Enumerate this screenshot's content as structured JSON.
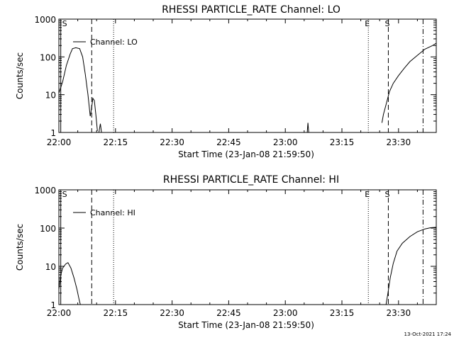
{
  "footer": {
    "timestamp": "13-Oct-2021 17:24"
  },
  "chart_data": [
    {
      "type": "line",
      "title": "RHESSI PARTICLE_RATE Channel: LO",
      "xlabel": "Start Time (23-Jan-08 21:59:50)",
      "ylabel": "Counts/sec",
      "yscale": "log",
      "ylim": [
        1,
        1000
      ],
      "xlim_min": [
        0,
        100
      ],
      "x_ticks": [
        {
          "min": 0,
          "label": "22:00"
        },
        {
          "min": 15,
          "label": "22:15"
        },
        {
          "min": 30,
          "label": "22:30"
        },
        {
          "min": 45,
          "label": "22:45"
        },
        {
          "min": 60,
          "label": "23:00"
        },
        {
          "min": 75,
          "label": "23:15"
        },
        {
          "min": 90,
          "label": "23:30"
        }
      ],
      "y_ticks": [
        {
          "value": 1,
          "label": "1"
        },
        {
          "value": 10,
          "label": "10"
        },
        {
          "value": 100,
          "label": "100"
        },
        {
          "value": 1000,
          "label": "1000"
        }
      ],
      "legend": {
        "entry": "Channel: LO",
        "position": "top-left"
      },
      "series": [
        {
          "name": "Channel: LO",
          "segments": [
            [
              [
                0,
                11
              ],
              [
                1,
                22
              ],
              [
                2,
                60
              ],
              [
                3,
                120
              ],
              [
                3.6,
                165
              ],
              [
                4.5,
                175
              ],
              [
                5.5,
                165
              ],
              [
                6.3,
                100
              ],
              [
                7,
                35
              ],
              [
                7.7,
                10
              ],
              [
                8.3,
                2.7
              ],
              [
                8.6,
                4
              ],
              [
                9,
                8
              ],
              [
                9.4,
                7
              ],
              [
                9.8,
                3
              ],
              [
                10.2,
                1.1
              ]
            ],
            [
              [
                10.6,
                1
              ],
              [
                11,
                1.7
              ],
              [
                11.3,
                1
              ]
            ],
            [
              [
                65.8,
                1
              ],
              [
                66,
                1.8
              ],
              [
                66.2,
                1
              ]
            ],
            [
              [
                85.6,
                1.8
              ],
              [
                86,
                3
              ],
              [
                86.8,
                6
              ],
              [
                87.6,
                12
              ],
              [
                88.6,
                20
              ],
              [
                90,
                32
              ],
              [
                91.5,
                50
              ],
              [
                93,
                75
              ],
              [
                95,
                110
              ],
              [
                97,
                160
              ],
              [
                99,
                200
              ],
              [
                100,
                230
              ]
            ]
          ]
        }
      ],
      "annotations": [
        {
          "label": "S",
          "min": 0.5,
          "style": "solid"
        },
        {
          "label": "",
          "min": 8.7,
          "style": "dashed"
        },
        {
          "label": "",
          "min": 14.5,
          "style": "dotted"
        },
        {
          "label": "E",
          "min": 82,
          "style": "dotted"
        },
        {
          "label": "S",
          "min": 87.3,
          "style": "dashed"
        },
        {
          "label": "",
          "min": 96.5,
          "style": "dashdot"
        }
      ]
    },
    {
      "type": "line",
      "title": "RHESSI PARTICLE_RATE Channel: HI",
      "xlabel": "Start Time (23-Jan-08 21:59:50)",
      "ylabel": "Counts/sec",
      "yscale": "log",
      "ylim": [
        1,
        1000
      ],
      "xlim_min": [
        0,
        100
      ],
      "x_ticks": [
        {
          "min": 0,
          "label": "22:00"
        },
        {
          "min": 15,
          "label": "22:15"
        },
        {
          "min": 30,
          "label": "22:30"
        },
        {
          "min": 45,
          "label": "22:45"
        },
        {
          "min": 60,
          "label": "23:00"
        },
        {
          "min": 75,
          "label": "23:15"
        },
        {
          "min": 90,
          "label": "23:30"
        }
      ],
      "y_ticks": [
        {
          "value": 1,
          "label": "1"
        },
        {
          "value": 10,
          "label": "10"
        },
        {
          "value": 100,
          "label": "100"
        },
        {
          "value": 1000,
          "label": "1000"
        }
      ],
      "legend": {
        "entry": "Channel: HI",
        "position": "top-left"
      },
      "series": [
        {
          "name": "Channel: HI",
          "segments": [
            [
              [
                0,
                2.5
              ],
              [
                0.5,
                6
              ],
              [
                1,
                9
              ],
              [
                1.8,
                11.5
              ],
              [
                2.4,
                12.5
              ],
              [
                3.2,
                9
              ],
              [
                4,
                5
              ],
              [
                4.8,
                2.5
              ],
              [
                5.4,
                1.3
              ],
              [
                5.7,
                1
              ]
            ],
            [
              [
                86.7,
                1
              ],
              [
                87.2,
                2
              ],
              [
                87.8,
                5
              ],
              [
                88.6,
                12
              ],
              [
                89.6,
                25
              ],
              [
                91,
                40
              ],
              [
                93,
                60
              ],
              [
                95,
                80
              ],
              [
                97,
                95
              ],
              [
                98.5,
                102
              ],
              [
                100,
                105
              ]
            ]
          ]
        }
      ],
      "annotations": [
        {
          "label": "S",
          "min": 0.5,
          "style": "solid"
        },
        {
          "label": "",
          "min": 8.7,
          "style": "dashed"
        },
        {
          "label": "",
          "min": 14.5,
          "style": "dotted"
        },
        {
          "label": "E",
          "min": 82,
          "style": "dotted"
        },
        {
          "label": "S",
          "min": 87.3,
          "style": "dashed"
        },
        {
          "label": "",
          "min": 96.5,
          "style": "dashdot"
        }
      ]
    }
  ]
}
